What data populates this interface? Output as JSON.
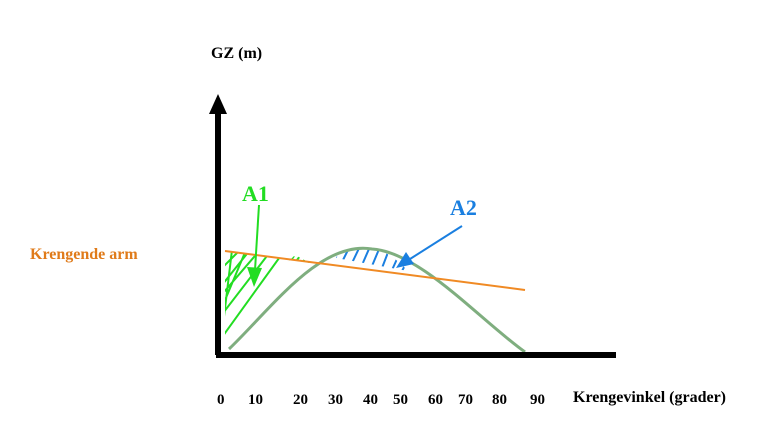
{
  "diagram": {
    "y_axis_label": "GZ (m)",
    "x_axis_label": "Krengevinkel (grader)",
    "heeling_arm_label": "Krengende arm",
    "area1_label": "A1",
    "area2_label": "A2",
    "x_ticks": [
      "0",
      "10",
      "20",
      "30",
      "40",
      "50",
      "60",
      "70",
      "80",
      "90"
    ],
    "colors": {
      "axes": "#000000",
      "gz_curve": "#7fae7f",
      "heeling_arm": "#f08a24",
      "area1": "#22dd22",
      "area2": "#1a7fe0",
      "heeling_arm_label": "#e07b1a"
    }
  }
}
